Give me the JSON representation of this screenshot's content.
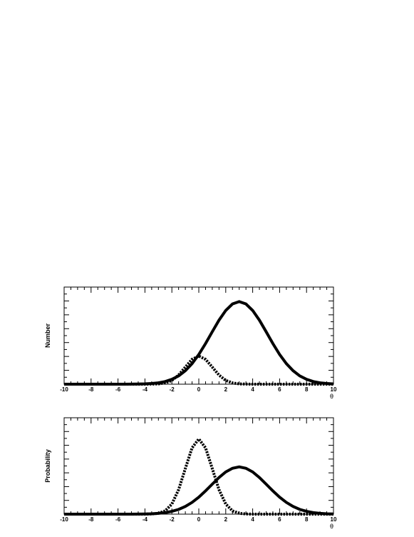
{
  "chart_data": [
    {
      "type": "line",
      "ylabel": "Number",
      "xlabel": "θ",
      "x": [
        -10,
        -9.5,
        -9,
        -8.5,
        -8,
        -7.5,
        -7,
        -6.5,
        -6,
        -5.5,
        -5,
        -4.5,
        -4,
        -3.5,
        -3,
        -2.5,
        -2,
        -1.5,
        -1,
        -0.5,
        0,
        0.5,
        1,
        1.5,
        2,
        2.5,
        3,
        3.5,
        4,
        4.5,
        5,
        5.5,
        6,
        6.5,
        7,
        7.5,
        8,
        8.5,
        9,
        9.5,
        10
      ],
      "xlim": [
        -10,
        10
      ],
      "xticks": [
        -10,
        -8,
        -6,
        -4,
        -2,
        0,
        2,
        4,
        6,
        8,
        10
      ],
      "ylim": [
        0,
        1
      ],
      "series": [
        {
          "color": "#000000",
          "style": "solid",
          "values": [
            0,
            0,
            0,
            0,
            0,
            0,
            0,
            0,
            0.0001,
            0.0003,
            0.0006,
            0.0014,
            0.0033,
            0.0071,
            0.014,
            0.027,
            0.05,
            0.085,
            0.139,
            0.212,
            0.306,
            0.418,
            0.54,
            0.659,
            0.759,
            0.826,
            0.85,
            0.826,
            0.759,
            0.659,
            0.54,
            0.418,
            0.306,
            0.212,
            0.139,
            0.085,
            0.05,
            0.027,
            0.014,
            0.007,
            0.003
          ]
        },
        {
          "color": "#000000",
          "style": "dashed",
          "values": [
            0,
            0,
            0,
            0,
            0,
            0,
            0,
            0,
            0,
            0,
            0,
            0,
            0,
            0.001,
            0.003,
            0.013,
            0.039,
            0.094,
            0.176,
            0.256,
            0.29,
            0.256,
            0.176,
            0.094,
            0.039,
            0.013,
            0.003,
            0.001,
            0,
            0,
            0,
            0,
            0,
            0,
            0,
            0,
            0,
            0,
            0,
            0,
            0
          ]
        }
      ]
    },
    {
      "type": "line",
      "ylabel": "Probability",
      "xlabel": "θ",
      "x": [
        -10,
        -9.5,
        -9,
        -8.5,
        -8,
        -7.5,
        -7,
        -6.5,
        -6,
        -5.5,
        -5,
        -4.5,
        -4,
        -3.5,
        -3,
        -2.5,
        -2,
        -1.5,
        -1,
        -0.5,
        0,
        0.5,
        1,
        1.5,
        2,
        2.5,
        3,
        3.5,
        4,
        4.5,
        5,
        5.5,
        6,
        6.5,
        7,
        7.5,
        8,
        8.5,
        9,
        9.5,
        10
      ],
      "xlim": [
        -10,
        10
      ],
      "xticks": [
        -10,
        -8,
        -6,
        -4,
        -2,
        0,
        2,
        4,
        6,
        8,
        10
      ],
      "ylim": [
        0,
        1
      ],
      "series": [
        {
          "color": "#000000",
          "style": "solid",
          "values": [
            0,
            0,
            0,
            0,
            0,
            0,
            0,
            0,
            0,
            0.0001,
            0.0003,
            0.0008,
            0.0019,
            0.0041,
            0.008,
            0.016,
            0.029,
            0.049,
            0.08,
            0.122,
            0.176,
            0.241,
            0.311,
            0.38,
            0.438,
            0.476,
            0.49,
            0.476,
            0.438,
            0.38,
            0.311,
            0.241,
            0.176,
            0.122,
            0.08,
            0.049,
            0.029,
            0.016,
            0.008,
            0.004,
            0.002
          ]
        },
        {
          "color": "#000000",
          "style": "dashed",
          "values": [
            0,
            0,
            0,
            0,
            0,
            0,
            0,
            0,
            0,
            0,
            0,
            0,
            0,
            0.002,
            0.009,
            0.034,
            0.105,
            0.254,
            0.473,
            0.688,
            0.78,
            0.688,
            0.473,
            0.254,
            0.105,
            0.034,
            0.009,
            0.002,
            0,
            0,
            0,
            0,
            0,
            0,
            0,
            0,
            0,
            0,
            0,
            0,
            0
          ]
        }
      ]
    }
  ]
}
